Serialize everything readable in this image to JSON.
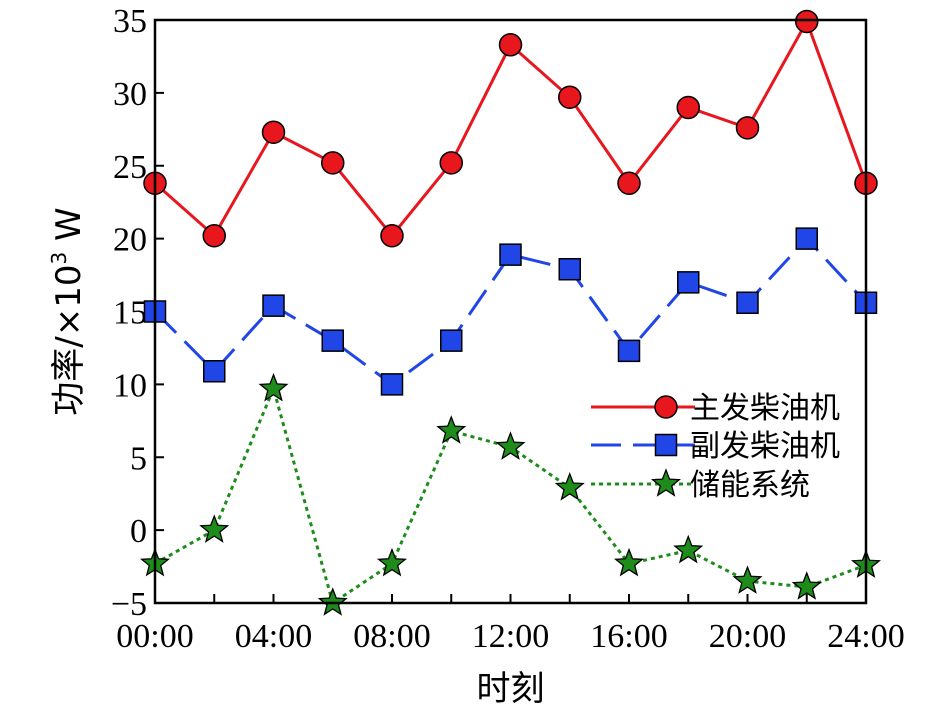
{
  "chart_data": {
    "type": "line",
    "x": [
      "00:00",
      "02:00",
      "04:00",
      "06:00",
      "08:00",
      "10:00",
      "12:00",
      "14:00",
      "16:00",
      "18:00",
      "20:00",
      "22:00",
      "24:00"
    ],
    "x_tick_labels": [
      "00:00",
      "04:00",
      "08:00",
      "12:00",
      "16:00",
      "20:00",
      "24:00"
    ],
    "xlabel": "时刻",
    "ylabel_main": "功率/×10",
    "ylabel_sup": "3",
    "ylabel_unit": " W",
    "ylim": [
      -5,
      35
    ],
    "y_ticks": [
      -5,
      0,
      5,
      10,
      15,
      20,
      25,
      30,
      35
    ],
    "y_tick_labels": [
      "−5",
      "0",
      "5",
      "10",
      "15",
      "20",
      "25",
      "30",
      "35"
    ],
    "grid": false,
    "legend_position": "center-right",
    "series": [
      {
        "name": "主发柴油机",
        "color": "#e8161d",
        "line_style": "solid",
        "marker": "circle",
        "values": [
          23.8,
          20.2,
          27.3,
          25.2,
          20.2,
          25.2,
          33.3,
          29.7,
          23.8,
          29.0,
          27.6,
          34.9,
          23.8
        ]
      },
      {
        "name": "副发柴油机",
        "color": "#2046e8",
        "line_style": "dashed",
        "marker": "square",
        "values": [
          15.0,
          10.9,
          15.4,
          13.0,
          10.0,
          13.0,
          18.9,
          17.9,
          12.3,
          17.0,
          15.6,
          20.0,
          15.6
        ]
      },
      {
        "name": "储能系统",
        "color": "#1e8c1a",
        "line_style": "dotted",
        "marker": "star",
        "values": [
          -2.3,
          0.0,
          9.7,
          -5.0,
          -2.3,
          6.8,
          5.7,
          2.9,
          -2.3,
          -1.4,
          -3.5,
          -3.9,
          -2.4
        ]
      }
    ]
  }
}
